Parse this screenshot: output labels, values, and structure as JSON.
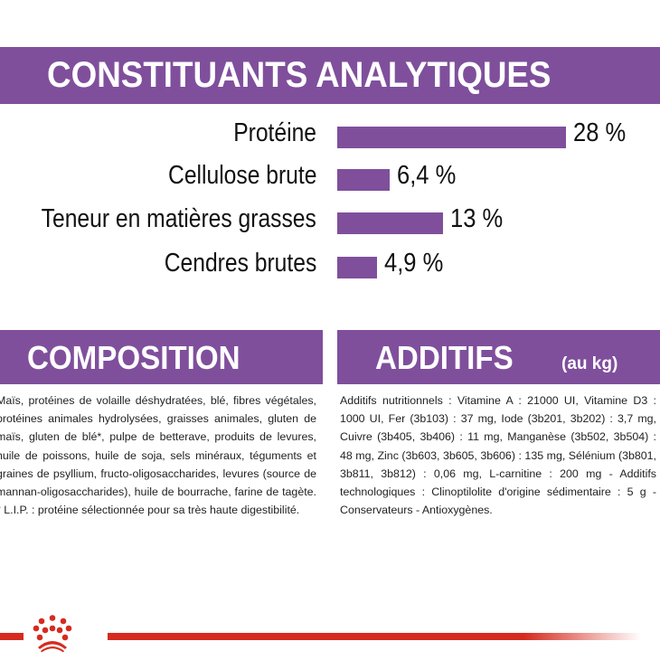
{
  "chart_data": {
    "type": "bar",
    "orientation": "horizontal",
    "title": "CONSTITUANTS ANALYTIQUES",
    "categories": [
      "Protéine",
      "Cellulose brute",
      "Teneur en matières grasses",
      "Cendres brutes"
    ],
    "values": [
      28,
      6.4,
      13,
      4.9
    ],
    "value_labels": [
      "28 %",
      "6,4 %",
      "13 %",
      "4,9 %"
    ],
    "bar_color": "#7f4f9c",
    "grid": false
  },
  "composition": {
    "title": "COMPOSITION",
    "text": "Maïs, protéines de volaille déshydratées, blé, fibres végétales, protéines animales hydrolysées, graisses animales, gluten de maïs, gluten de blé*, pulpe de betterave, produits de levures, huile de poissons, huile de soja, sels minéraux, téguments et graines de psyllium, fructo-oligosaccharides, levures (source de mannan-oligosaccharides), huile de bourrache, farine de tagète. * L.I.P. : protéine sélectionnée pour sa très haute digestibilité."
  },
  "additifs": {
    "title": "ADDITIFS",
    "subtitle": "(au kg)",
    "text": "Additifs nutritionnels : Vitamine A : 21000 UI, Vitamine D3 : 1000 UI, Fer (3b103) : 37 mg, Iode (3b201, 3b202) : 3,7 mg, Cuivre (3b405, 3b406) : 11 mg, Manganèse (3b502, 3b504) : 48 mg, Zinc (3b603, 3b605, 3b606) : 135 mg, Sélénium (3b801, 3b811, 3b812) : 0,06 mg, L-carnitine : 200 mg - Additifs technologiques : Clinoptilolite d'origine sédimentaire : 5 g - Conservateurs - Antioxygènes."
  },
  "colors": {
    "purple": "#7f4f9c",
    "red": "#d52b1e"
  },
  "footer": {
    "logo": "royal-canin-crown-icon"
  }
}
